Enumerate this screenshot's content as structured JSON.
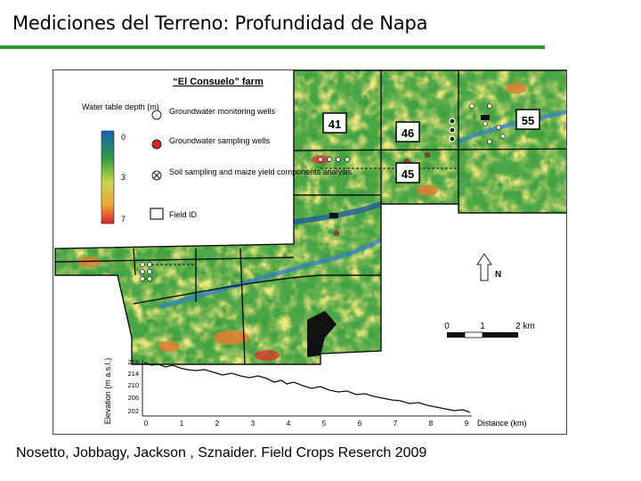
{
  "slide": {
    "title": "Mediciones del Terreno: Profundidad de Napa",
    "citation": "Nosetto, Jobbagy, Jackson , Sznaider. Field Crops Reserch 2009",
    "accent_color": "#2e9a2e"
  },
  "map": {
    "title": "“El Consuelo” farm",
    "legend": {
      "colorbar_title": "Water table depth (m)",
      "colorbar_ticks": [
        "0",
        "3",
        "7"
      ],
      "colorbar_colors": [
        "#1a5fb4",
        "#2f9e3e",
        "#c8d64a",
        "#f0a23a",
        "#d8262b"
      ],
      "items": [
        {
          "icon": "white-circle-icon",
          "label": "Groundwater monitoring wells"
        },
        {
          "icon": "red-circle-icon",
          "label": "Groundwater sampling wells"
        },
        {
          "icon": "x-marker-icon",
          "label": "Soil sampling and maize yield components analysis"
        },
        {
          "icon": "square-outline-icon",
          "label": "Field ID"
        }
      ]
    },
    "field_ids": [
      "41",
      "46",
      "55",
      "45"
    ],
    "north_label": "N",
    "scale_bar": {
      "ticks": [
        "0",
        "1",
        "2 km"
      ]
    },
    "profile": {
      "ylabel": "Elevation (m a.s.l.)",
      "yticks": [
        "218",
        "214",
        "210",
        "206",
        "202"
      ],
      "xticks": [
        "0",
        "1",
        "2",
        "3",
        "4",
        "5",
        "6",
        "7",
        "8",
        "9"
      ],
      "xlabel": "Distance (km)"
    }
  }
}
